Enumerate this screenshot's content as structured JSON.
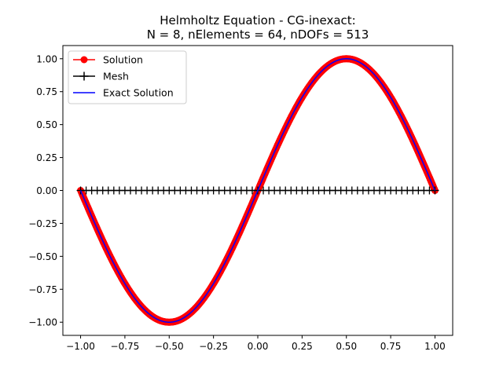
{
  "chart_data": {
    "type": "line",
    "title_line1": "Helmholtz Equation - CG-inexact:",
    "title_line2": "N = 8,  nElements = 64,  nDOFs = 513",
    "xlabel": "",
    "ylabel": "",
    "xlim": [
      -1.1,
      1.1
    ],
    "ylim": [
      -1.1,
      1.1
    ],
    "xticks": [
      -1.0,
      -0.75,
      -0.5,
      -0.25,
      0.0,
      0.25,
      0.5,
      0.75,
      1.0
    ],
    "xtick_labels": [
      "−1.00",
      "−0.75",
      "−0.50",
      "−0.25",
      "0.00",
      "0.25",
      "0.50",
      "0.75",
      "1.00"
    ],
    "yticks": [
      -1.0,
      -0.75,
      -0.5,
      -0.25,
      0.0,
      0.25,
      0.5,
      0.75,
      1.0
    ],
    "ytick_labels": [
      "−1.00",
      "−0.75",
      "−0.50",
      "−0.25",
      "0.00",
      "0.25",
      "0.50",
      "0.75",
      "1.00"
    ],
    "grid": false,
    "legend_position": "top-left",
    "series": [
      {
        "name": "Solution",
        "color": "#ff0000",
        "style": "line-with-circle-markers",
        "x_range": [
          -1.0,
          1.0
        ],
        "n_points": 513,
        "function": "y = sin(pi * x)"
      },
      {
        "name": "Mesh",
        "color": "#000000",
        "style": "line-with-plus-markers",
        "x_range": [
          -1.0,
          1.0
        ],
        "n_points": 65,
        "y": 0
      },
      {
        "name": "Exact Solution",
        "color": "#0000ff",
        "style": "line",
        "x_range": [
          -1.0,
          1.0
        ],
        "function": "y = sin(pi * x)"
      }
    ]
  }
}
